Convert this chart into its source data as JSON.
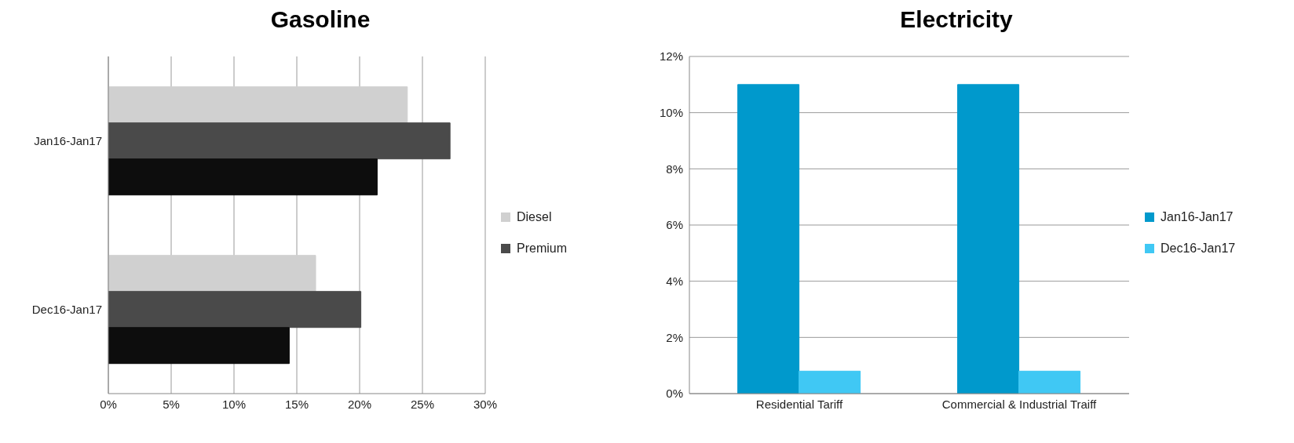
{
  "chart_data": [
    {
      "type": "bar",
      "title": "Gasoline",
      "orientation": "horizontal",
      "categories": [
        "Jan16-Jan17",
        "Dec16-Jan17"
      ],
      "series": [
        {
          "name": "Diesel",
          "color": "#d0d0d0",
          "values": [
            23.8,
            16.5
          ]
        },
        {
          "name": "Premium",
          "color": "#4a4a4a",
          "values": [
            27.2,
            20.1
          ]
        },
        {
          "color": "#0d0d0d",
          "values": [
            21.4,
            14.4
          ]
        }
      ],
      "xlim": [
        0,
        30
      ],
      "xticks": [
        {
          "value": 0,
          "label": "0%"
        },
        {
          "value": 5,
          "label": "5%"
        },
        {
          "value": 10,
          "label": "10%"
        },
        {
          "value": 15,
          "label": "15%"
        },
        {
          "value": 20,
          "label": "20%"
        },
        {
          "value": 25,
          "label": "25%"
        },
        {
          "value": 30,
          "label": "30%"
        }
      ],
      "grid": "x",
      "legend": "right"
    },
    {
      "type": "bar",
      "title": "Electricity",
      "categories": [
        "Residential Tariff",
        "Commercial & Industrial Traiff"
      ],
      "series": [
        {
          "name": "Jan16-Jan17",
          "color": "#0099cc",
          "values": [
            11,
            11
          ]
        },
        {
          "name": "Dec16-Jan17",
          "color": "#40c8f4",
          "values": [
            0.8,
            0.8
          ]
        }
      ],
      "ylim": [
        0,
        12
      ],
      "yticks": [
        {
          "value": 0,
          "label": "0%"
        },
        {
          "value": 2,
          "label": "2%"
        },
        {
          "value": 4,
          "label": "4%"
        },
        {
          "value": 6,
          "label": "6%"
        },
        {
          "value": 8,
          "label": "8%"
        },
        {
          "value": 10,
          "label": "10%"
        },
        {
          "value": 12,
          "label": "12%"
        }
      ],
      "grid": "y",
      "legend": "right"
    }
  ]
}
